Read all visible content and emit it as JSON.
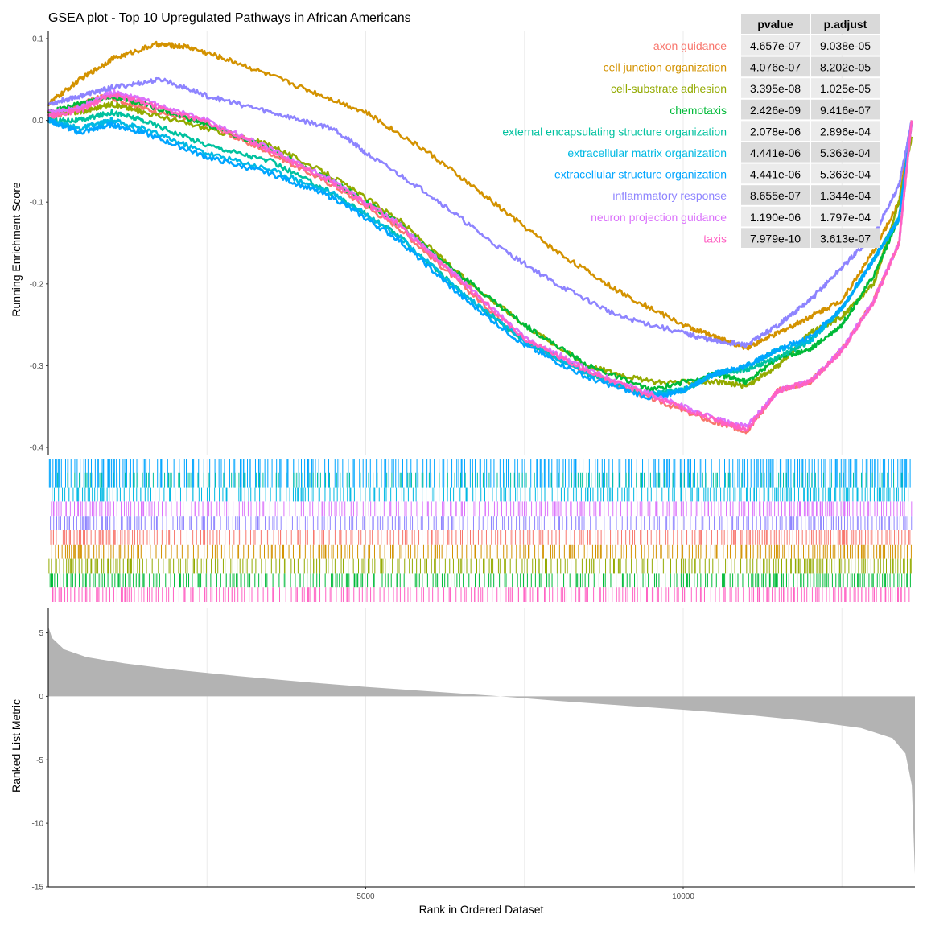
{
  "chart_data": {
    "type": "line",
    "title": "GSEA plot - Top 10 Upregulated Pathways in African Americans",
    "xlabel": "Rank in Ordered Dataset",
    "ylabel_top": "Running Enrichment Score",
    "ylabel_bottom": "Ranked List Metric",
    "xlim": [
      0,
      13650
    ],
    "x_ticks": [
      5000,
      10000
    ],
    "es_ylim": [
      -0.4,
      0.1
    ],
    "es_ticks": [
      0.1,
      0.0,
      -0.1,
      -0.2,
      -0.3,
      -0.4
    ],
    "es_tick_labels": [
      "0.1",
      "0.0",
      "-0.1",
      "-0.2",
      "-0.3",
      "-0.4"
    ],
    "metric_ylim": [
      -15,
      7
    ],
    "metric_ticks": [
      5,
      0,
      -5,
      -10,
      -15
    ],
    "metric_tick_labels": [
      "5",
      "0",
      "-5",
      "-10",
      "-15"
    ],
    "metric_fill": "#b3b3b3",
    "metric_curve": [
      [
        0,
        5.5
      ],
      [
        60,
        4.6
      ],
      [
        250,
        3.7
      ],
      [
        600,
        3.1
      ],
      [
        1200,
        2.6
      ],
      [
        2000,
        2.1
      ],
      [
        3000,
        1.6
      ],
      [
        4000,
        1.15
      ],
      [
        5000,
        0.75
      ],
      [
        6000,
        0.4
      ],
      [
        7000,
        0.05
      ],
      [
        8000,
        -0.35
      ],
      [
        9000,
        -0.7
      ],
      [
        10000,
        -1.05
      ],
      [
        11000,
        -1.45
      ],
      [
        12000,
        -1.95
      ],
      [
        12800,
        -2.5
      ],
      [
        13300,
        -3.3
      ],
      [
        13500,
        -4.5
      ],
      [
        13600,
        -7.0
      ],
      [
        13650,
        -14.0
      ]
    ],
    "table": {
      "headers": [
        "pvalue",
        "p.adjust"
      ]
    },
    "series": [
      {
        "name": "axon guidance",
        "color": "#F8766D",
        "pvalue": "4.657e-07",
        "padjust": "9.038e-05",
        "values": [
          [
            0,
            0.0
          ],
          [
            500,
            0.02
          ],
          [
            900,
            0.03
          ],
          [
            1500,
            0.015
          ],
          [
            2500,
            -0.005
          ],
          [
            3500,
            -0.04
          ],
          [
            4500,
            -0.08
          ],
          [
            5500,
            -0.13
          ],
          [
            6500,
            -0.2
          ],
          [
            7500,
            -0.27
          ],
          [
            8500,
            -0.31
          ],
          [
            9500,
            -0.34
          ],
          [
            10500,
            -0.37
          ],
          [
            11000,
            -0.38
          ],
          [
            11500,
            -0.33
          ],
          [
            12000,
            -0.32
          ],
          [
            12500,
            -0.28
          ],
          [
            13000,
            -0.22
          ],
          [
            13400,
            -0.15
          ],
          [
            13600,
            0.0
          ]
        ]
      },
      {
        "name": "cell junction organization",
        "color": "#D39200",
        "pvalue": "4.076e-07",
        "padjust": "8.202e-05",
        "values": [
          [
            0,
            0.02
          ],
          [
            500,
            0.05
          ],
          [
            1000,
            0.075
          ],
          [
            1700,
            0.093
          ],
          [
            2200,
            0.09
          ],
          [
            3000,
            0.07
          ],
          [
            4000,
            0.04
          ],
          [
            5000,
            0.01
          ],
          [
            6000,
            -0.04
          ],
          [
            7000,
            -0.1
          ],
          [
            8000,
            -0.16
          ],
          [
            9000,
            -0.21
          ],
          [
            10000,
            -0.25
          ],
          [
            10500,
            -0.265
          ],
          [
            11000,
            -0.278
          ],
          [
            11500,
            -0.26
          ],
          [
            12000,
            -0.24
          ],
          [
            12500,
            -0.22
          ],
          [
            13000,
            -0.16
          ],
          [
            13400,
            -0.1
          ],
          [
            13600,
            0.0
          ]
        ]
      },
      {
        "name": "cell-substrate adhesion",
        "color": "#93AA00",
        "pvalue": "3.395e-08",
        "padjust": "1.025e-05",
        "values": [
          [
            0,
            0.01
          ],
          [
            500,
            0.01
          ],
          [
            1000,
            0.02
          ],
          [
            1500,
            0.01
          ],
          [
            2500,
            -0.01
          ],
          [
            3500,
            -0.03
          ],
          [
            4500,
            -0.07
          ],
          [
            5500,
            -0.12
          ],
          [
            6500,
            -0.19
          ],
          [
            7500,
            -0.25
          ],
          [
            8500,
            -0.3
          ],
          [
            9500,
            -0.32
          ],
          [
            10500,
            -0.32
          ],
          [
            11000,
            -0.325
          ],
          [
            11500,
            -0.3
          ],
          [
            12000,
            -0.26
          ],
          [
            12500,
            -0.24
          ],
          [
            13000,
            -0.2
          ],
          [
            13400,
            -0.1
          ],
          [
            13600,
            -0.02
          ]
        ]
      },
      {
        "name": "chemotaxis",
        "color": "#00BA38",
        "pvalue": "2.426e-09",
        "padjust": "9.416e-07",
        "values": [
          [
            0,
            0.01
          ],
          [
            500,
            0.02
          ],
          [
            1000,
            0.03
          ],
          [
            1500,
            0.02
          ],
          [
            2500,
            -0.005
          ],
          [
            3500,
            -0.035
          ],
          [
            4500,
            -0.075
          ],
          [
            5500,
            -0.125
          ],
          [
            6500,
            -0.19
          ],
          [
            7500,
            -0.25
          ],
          [
            8500,
            -0.3
          ],
          [
            9500,
            -0.33
          ],
          [
            10500,
            -0.31
          ],
          [
            11000,
            -0.32
          ],
          [
            11500,
            -0.29
          ],
          [
            12000,
            -0.28
          ],
          [
            12500,
            -0.25
          ],
          [
            13000,
            -0.19
          ],
          [
            13400,
            -0.12
          ],
          [
            13600,
            0.0
          ]
        ]
      },
      {
        "name": "external encapsulating structure organization",
        "color": "#00C19F",
        "pvalue": "2.078e-06",
        "padjust": "2.896e-04",
        "values": [
          [
            0,
            0.0
          ],
          [
            500,
            0.0
          ],
          [
            1000,
            0.01
          ],
          [
            1500,
            0.0
          ],
          [
            2500,
            -0.03
          ],
          [
            3500,
            -0.05
          ],
          [
            4500,
            -0.09
          ],
          [
            5500,
            -0.14
          ],
          [
            6500,
            -0.21
          ],
          [
            7500,
            -0.27
          ],
          [
            8500,
            -0.31
          ],
          [
            9500,
            -0.335
          ],
          [
            10000,
            -0.33
          ],
          [
            10500,
            -0.31
          ],
          [
            11000,
            -0.305
          ],
          [
            11500,
            -0.29
          ],
          [
            12000,
            -0.27
          ],
          [
            12500,
            -0.23
          ],
          [
            13000,
            -0.17
          ],
          [
            13400,
            -0.12
          ],
          [
            13600,
            0.0
          ]
        ]
      },
      {
        "name": "extracellular matrix organization",
        "color": "#00B9E3",
        "pvalue": "4.441e-06",
        "padjust": "5.363e-04",
        "values": [
          [
            0,
            0.0
          ],
          [
            500,
            -0.01
          ],
          [
            1000,
            0.0
          ],
          [
            1500,
            -0.01
          ],
          [
            2500,
            -0.04
          ],
          [
            3500,
            -0.06
          ],
          [
            4500,
            -0.09
          ],
          [
            5500,
            -0.14
          ],
          [
            6500,
            -0.21
          ],
          [
            7500,
            -0.27
          ],
          [
            8500,
            -0.31
          ],
          [
            9500,
            -0.335
          ],
          [
            10000,
            -0.33
          ],
          [
            10500,
            -0.31
          ],
          [
            11000,
            -0.3
          ],
          [
            11500,
            -0.28
          ],
          [
            12000,
            -0.27
          ],
          [
            12500,
            -0.23
          ],
          [
            13000,
            -0.17
          ],
          [
            13400,
            -0.12
          ],
          [
            13600,
            0.0
          ]
        ]
      },
      {
        "name": "extracellular structure organization",
        "color": "#00A5FF",
        "pvalue": "4.441e-06",
        "padjust": "5.363e-04",
        "values": [
          [
            0,
            0.0
          ],
          [
            500,
            -0.015
          ],
          [
            1000,
            -0.005
          ],
          [
            1500,
            -0.015
          ],
          [
            2500,
            -0.045
          ],
          [
            3500,
            -0.065
          ],
          [
            4500,
            -0.095
          ],
          [
            5500,
            -0.145
          ],
          [
            6500,
            -0.215
          ],
          [
            7500,
            -0.275
          ],
          [
            8500,
            -0.315
          ],
          [
            9500,
            -0.34
          ],
          [
            10000,
            -0.33
          ],
          [
            10500,
            -0.31
          ],
          [
            11000,
            -0.3
          ],
          [
            11500,
            -0.28
          ],
          [
            12000,
            -0.265
          ],
          [
            12500,
            -0.23
          ],
          [
            13000,
            -0.17
          ],
          [
            13400,
            -0.12
          ],
          [
            13600,
            0.0
          ]
        ]
      },
      {
        "name": "inflammatory response",
        "color": "#8E84FF",
        "pvalue": "8.655e-07",
        "padjust": "1.344e-04",
        "values": [
          [
            0,
            0.02
          ],
          [
            500,
            0.03
          ],
          [
            1000,
            0.04
          ],
          [
            1800,
            0.05
          ],
          [
            2500,
            0.03
          ],
          [
            3500,
            0.01
          ],
          [
            4500,
            -0.01
          ],
          [
            5000,
            -0.04
          ],
          [
            6000,
            -0.09
          ],
          [
            7000,
            -0.15
          ],
          [
            8000,
            -0.2
          ],
          [
            9000,
            -0.24
          ],
          [
            10000,
            -0.26
          ],
          [
            10500,
            -0.27
          ],
          [
            11000,
            -0.275
          ],
          [
            11500,
            -0.25
          ],
          [
            12000,
            -0.22
          ],
          [
            12500,
            -0.18
          ],
          [
            13000,
            -0.14
          ],
          [
            13400,
            -0.08
          ],
          [
            13600,
            0.0
          ]
        ]
      },
      {
        "name": "neuron projection guidance",
        "color": "#DB72FB",
        "pvalue": "1.190e-06",
        "padjust": "1.797e-04",
        "values": [
          [
            0,
            0.01
          ],
          [
            500,
            0.015
          ],
          [
            1000,
            0.035
          ],
          [
            1500,
            0.025
          ],
          [
            2500,
            0.0
          ],
          [
            3500,
            -0.035
          ],
          [
            4500,
            -0.075
          ],
          [
            5500,
            -0.125
          ],
          [
            6500,
            -0.195
          ],
          [
            7500,
            -0.265
          ],
          [
            8500,
            -0.305
          ],
          [
            9500,
            -0.335
          ],
          [
            10500,
            -0.365
          ],
          [
            11000,
            -0.375
          ],
          [
            11500,
            -0.33
          ],
          [
            12000,
            -0.32
          ],
          [
            12500,
            -0.28
          ],
          [
            13000,
            -0.22
          ],
          [
            13400,
            -0.15
          ],
          [
            13600,
            0.0
          ]
        ]
      },
      {
        "name": "taxis",
        "color": "#FF61C3",
        "pvalue": "7.979e-10",
        "padjust": "3.613e-07",
        "values": [
          [
            0,
            0.005
          ],
          [
            500,
            0.012
          ],
          [
            1000,
            0.032
          ],
          [
            1500,
            0.022
          ],
          [
            2500,
            -0.002
          ],
          [
            3500,
            -0.037
          ],
          [
            4500,
            -0.077
          ],
          [
            5500,
            -0.127
          ],
          [
            6500,
            -0.197
          ],
          [
            7500,
            -0.267
          ],
          [
            8500,
            -0.307
          ],
          [
            9500,
            -0.337
          ],
          [
            10500,
            -0.367
          ],
          [
            11000,
            -0.378
          ],
          [
            11500,
            -0.33
          ],
          [
            12000,
            -0.32
          ],
          [
            12500,
            -0.282
          ],
          [
            13000,
            -0.222
          ],
          [
            13400,
            -0.15
          ],
          [
            13600,
            0.0
          ]
        ]
      }
    ]
  }
}
